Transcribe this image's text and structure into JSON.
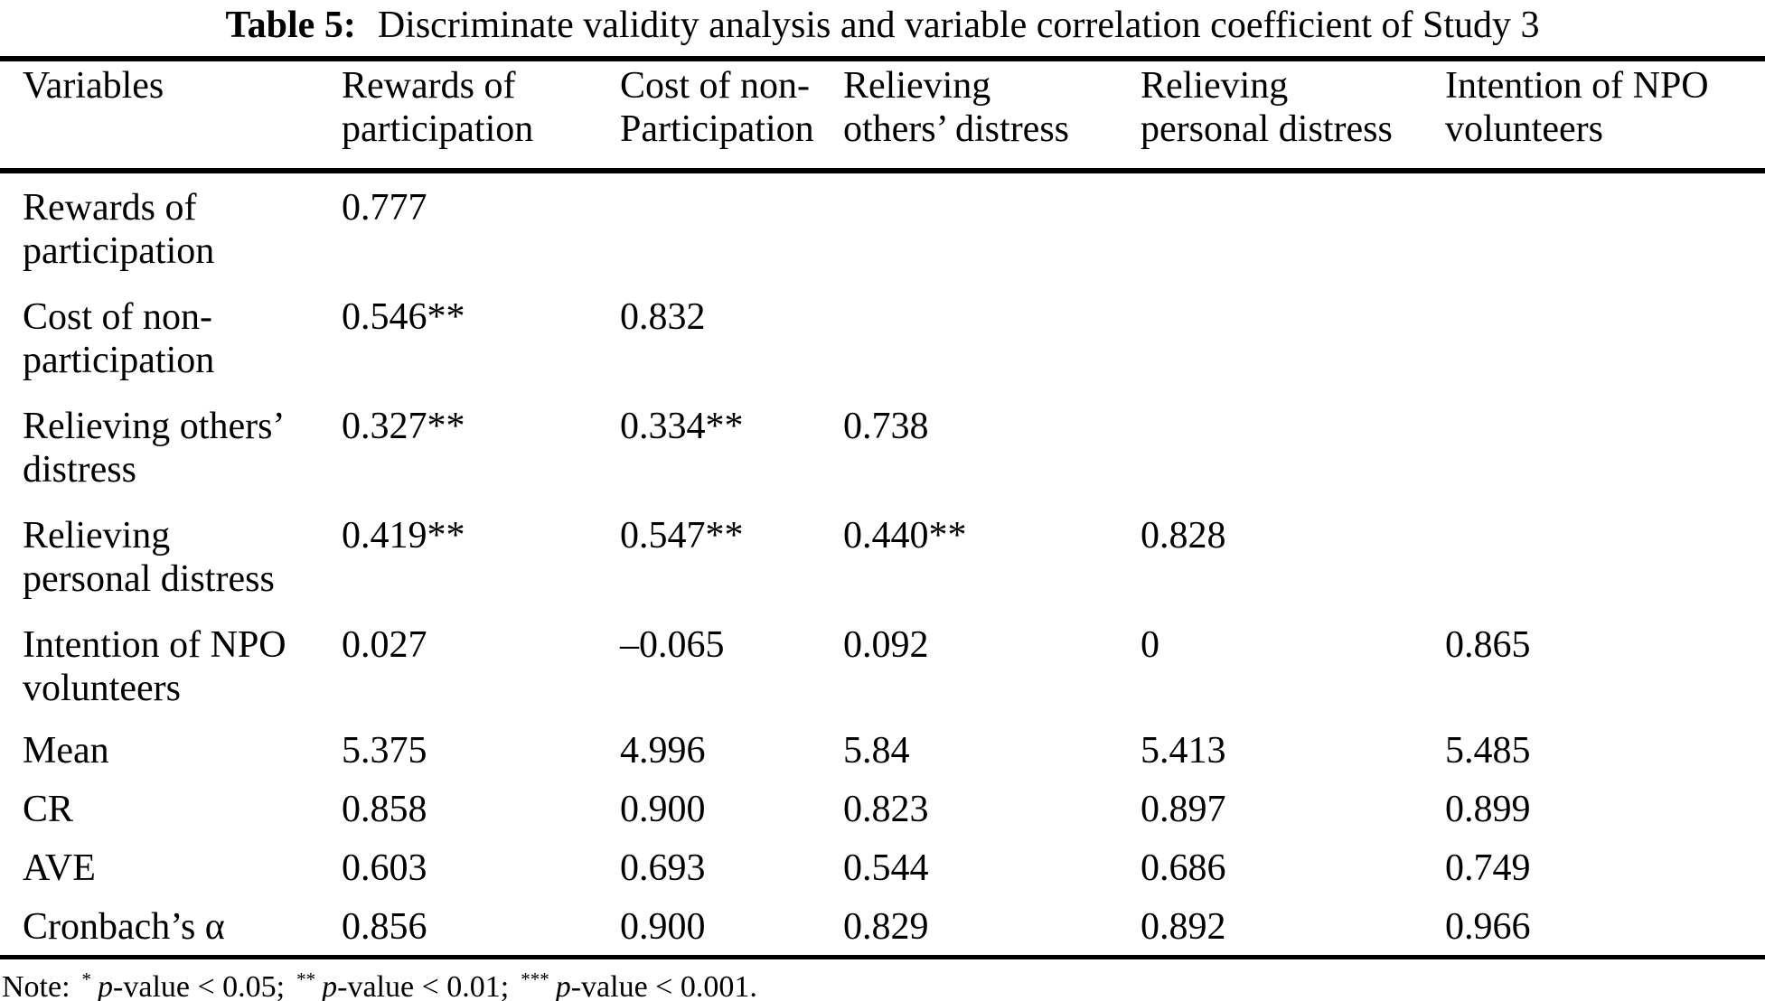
{
  "colors": {
    "text": "#000000",
    "background": "#ffffff",
    "rule": "#000000"
  },
  "title": {
    "label": "Table 5:",
    "text": "Discriminate validity analysis and variable correlation coefficient of Study 3"
  },
  "table": {
    "header": [
      {
        "lines": [
          "Variables"
        ]
      },
      {
        "lines": [
          "Rewards of",
          "participation"
        ]
      },
      {
        "lines": [
          "Cost of non-",
          "Participation"
        ]
      },
      {
        "lines": [
          "Relieving",
          "others’ distress"
        ]
      },
      {
        "lines": [
          "Relieving",
          "personal distress"
        ]
      },
      {
        "lines": [
          "Intention of NPO",
          "volunteers"
        ]
      }
    ],
    "rows": [
      {
        "label": [
          "Rewards of",
          "participation"
        ],
        "values": [
          "0.777",
          "",
          "",
          "",
          ""
        ]
      },
      {
        "label": [
          "Cost of non-",
          "participation"
        ],
        "values": [
          "0.546**",
          "0.832",
          "",
          "",
          ""
        ]
      },
      {
        "label": [
          "Relieving others’",
          "distress"
        ],
        "values": [
          "0.327**",
          "0.334**",
          "0.738",
          "",
          ""
        ]
      },
      {
        "label": [
          "Relieving",
          "personal distress"
        ],
        "values": [
          "0.419**",
          "0.547**",
          "0.440**",
          "0.828",
          ""
        ]
      },
      {
        "label": [
          "Intention of NPO",
          "volunteers"
        ],
        "values": [
          "0.027",
          "–0.065",
          "0.092",
          "0",
          "0.865"
        ]
      },
      {
        "label": [
          "Mean"
        ],
        "values": [
          "5.375",
          "4.996",
          "5.84",
          "5.413",
          "5.485"
        ]
      },
      {
        "label": [
          "CR"
        ],
        "values": [
          "0.858",
          "0.900",
          "0.823",
          "0.897",
          "0.899"
        ]
      },
      {
        "label": [
          "AVE"
        ],
        "values": [
          "0.603",
          "0.693",
          "0.544",
          "0.686",
          "0.749"
        ]
      },
      {
        "label": [
          "Cronbach’s α"
        ],
        "values": [
          "0.856",
          "0.900",
          "0.829",
          "0.892",
          "0.966"
        ]
      }
    ]
  },
  "note": {
    "label": "Note:",
    "items": [
      {
        "stars": "*",
        "p": "p",
        "text": "-value < 0.05;"
      },
      {
        "stars": "**",
        "p": "p",
        "text": "-value < 0.01;"
      },
      {
        "stars": "***",
        "p": "p",
        "text": "-value < 0.001."
      }
    ]
  }
}
